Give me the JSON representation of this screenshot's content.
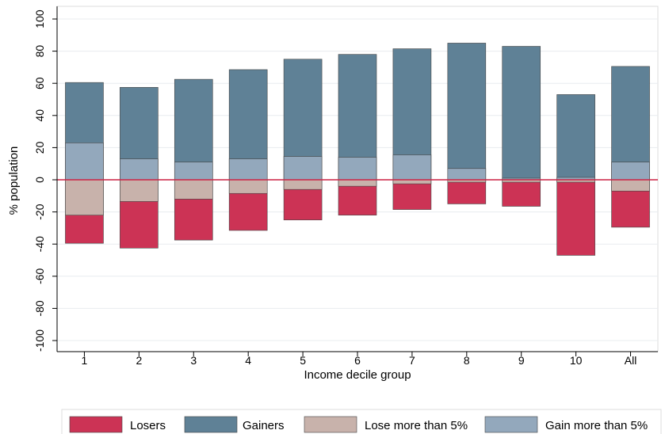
{
  "chart_data": {
    "type": "bar",
    "stacked": "overlay",
    "title": "",
    "xlabel": "Income decile group",
    "ylabel": "% population",
    "ylim": [
      -100,
      100
    ],
    "yticks": [
      -100,
      -80,
      -60,
      -40,
      -20,
      0,
      20,
      40,
      60,
      80,
      100
    ],
    "grid": true,
    "legend_position": "bottom",
    "zero_line_color": "#cc2244",
    "categories": [
      "1",
      "2",
      "3",
      "4",
      "5",
      "6",
      "7",
      "8",
      "9",
      "10",
      "All"
    ],
    "series": [
      {
        "name": "Losers",
        "color": "#cc3355",
        "values": [
          -39.5,
          -42.5,
          -37.5,
          -31.5,
          -25,
          -22,
          -18.5,
          -15,
          -16.5,
          -47,
          -29.5
        ]
      },
      {
        "name": "Gainers",
        "color": "#5f8196",
        "values": [
          60.5,
          57.5,
          62.5,
          68.5,
          75,
          78,
          81.5,
          85,
          83,
          53,
          70.5
        ]
      },
      {
        "name": "Lose more than 5%",
        "color": "#c8b2ab",
        "values": [
          -22,
          -13.5,
          -12,
          -8.5,
          -6,
          -4,
          -2.5,
          -1.5,
          -1.5,
          -1.5,
          -7
        ]
      },
      {
        "name": "Gain more than 5%",
        "color": "#93a8bc",
        "values": [
          23,
          13,
          11,
          13,
          14.5,
          14,
          15.5,
          7,
          1,
          1.5,
          11
        ]
      }
    ]
  }
}
